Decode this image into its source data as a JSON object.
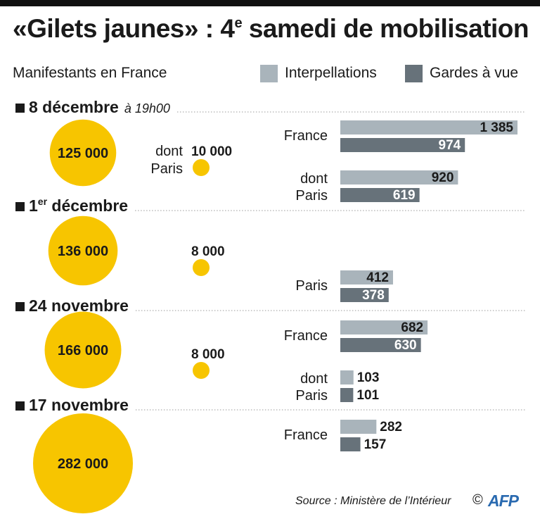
{
  "title": "«Gilets jaunes» : 4",
  "title_sup": "e",
  "title_rest": " samedi de mobilisation",
  "subtitle": "Manifestants en France",
  "source": "Source : Ministère de l’Intérieur",
  "copyright": "©",
  "logo_text": "AFP",
  "colors": {
    "circle": "#f7c500",
    "interpellations": "#a9b4bb",
    "gardes": "#67727a",
    "rule": "#9a9a9a"
  },
  "chart_data": {
    "type": "bar",
    "legend": [
      "Interpellations",
      "Gardes à vue"
    ],
    "legend_placement": "top-right",
    "bar_max": 1385,
    "sections": [
      {
        "date": "8 décembre",
        "date_sup": "",
        "date_note": "à 19h00",
        "manifestants": 125000,
        "manifestants_label": "125 000",
        "paris_prefix": [
          "dont",
          "Paris"
        ],
        "paris_manifestants": 10000,
        "paris_label": "10 000",
        "groups": [
          {
            "label": [
              "France"
            ],
            "interpellations": 1385,
            "interpellations_label": "1 385",
            "gardes": 974,
            "gardes_label": "974"
          },
          {
            "label": [
              "dont",
              "Paris"
            ],
            "interpellations": 920,
            "interpellations_label": "920",
            "gardes": 619,
            "gardes_label": "619"
          }
        ]
      },
      {
        "date": "1",
        "date_sup": "er",
        "date_rest": " décembre",
        "manifestants": 136000,
        "manifestants_label": "136 000",
        "paris_prefix": [],
        "paris_manifestants": 8000,
        "paris_label": "8 000",
        "groups": [
          {
            "label": [
              "Paris"
            ],
            "interpellations": 412,
            "interpellations_label": "412",
            "gardes": 378,
            "gardes_label": "378"
          }
        ]
      },
      {
        "date": "24 novembre",
        "date_sup": "",
        "manifestants": 166000,
        "manifestants_label": "166 000",
        "paris_prefix": [],
        "paris_manifestants": 8000,
        "paris_label": "8 000",
        "groups": [
          {
            "label": [
              "France"
            ],
            "interpellations": 682,
            "interpellations_label": "682",
            "gardes": 630,
            "gardes_label": "630"
          },
          {
            "label": [
              "dont",
              "Paris"
            ],
            "interpellations": 103,
            "interpellations_label": "103",
            "gardes": 101,
            "gardes_label": "101"
          }
        ]
      },
      {
        "date": "17 novembre",
        "date_sup": "",
        "manifestants": 282000,
        "manifestants_label": "282 000",
        "paris_prefix": [],
        "groups": [
          {
            "label": [
              "France"
            ],
            "interpellations": 282,
            "interpellations_label": "282",
            "gardes": 157,
            "gardes_label": "157"
          }
        ]
      }
    ]
  }
}
